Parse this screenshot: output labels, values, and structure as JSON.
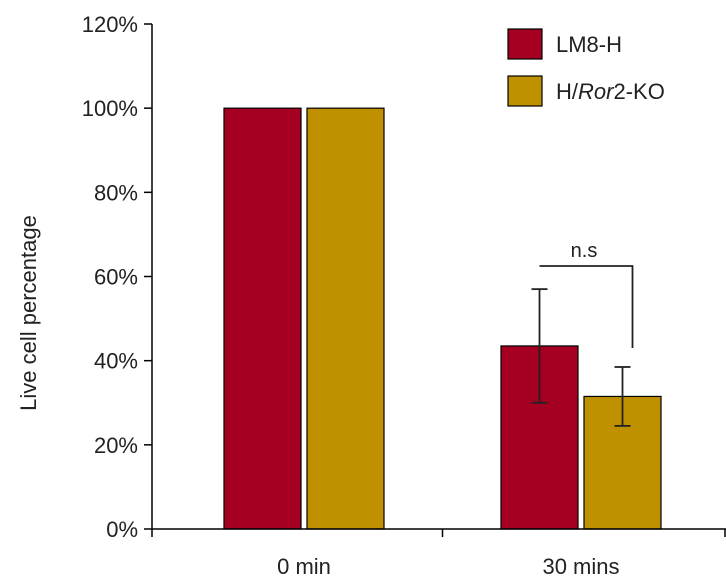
{
  "chart_data": {
    "type": "bar",
    "title": "",
    "xlabel": "",
    "ylabel": "Live cell percentage",
    "ylim": [
      0,
      120
    ],
    "y_tick_values": [
      0,
      20,
      40,
      60,
      80,
      100,
      120
    ],
    "y_tick_labels": [
      "0%",
      "20%",
      "40%",
      "60%",
      "80%",
      "100%",
      "120%"
    ],
    "categories": [
      "0 min",
      "30 mins"
    ],
    "series": [
      {
        "name": "LM8-H",
        "values": [
          100,
          43.5
        ],
        "errors": [
          0,
          13.5
        ],
        "color": "#a50021"
      },
      {
        "name": "H/Ror2-KO",
        "values": [
          100,
          31.5
        ],
        "errors": [
          0,
          7
        ],
        "color": "#bf9000"
      }
    ],
    "legend": {
      "position": "top-right",
      "items": [
        {
          "prefix": "LM8-H",
          "italic": "",
          "suffix": ""
        },
        {
          "prefix": "H/",
          "italic": "Ror",
          "suffix": "2-KO"
        }
      ]
    },
    "grid": false,
    "annotations": [
      {
        "text": "n.s",
        "category": "30 mins"
      }
    ]
  }
}
